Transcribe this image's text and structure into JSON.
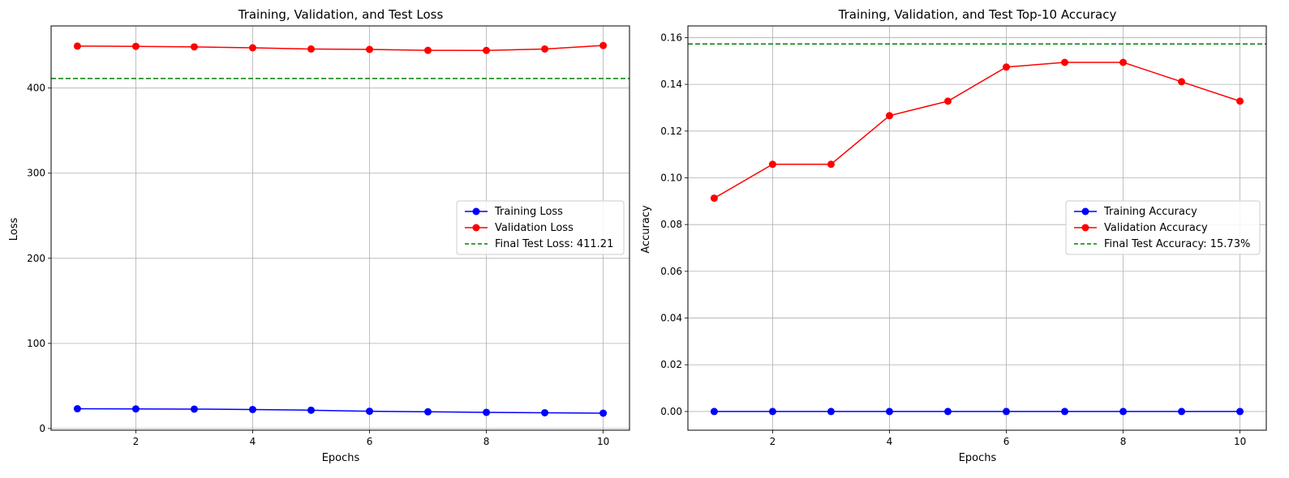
{
  "chart_data": [
    {
      "type": "line",
      "title": "Training, Validation, and Test Loss",
      "xlabel": "Epochs",
      "ylabel": "Loss",
      "xlim": [
        0.55,
        10.45
      ],
      "ylim": [
        -2,
        473
      ],
      "xticks": [
        2,
        4,
        6,
        8,
        10
      ],
      "yticks": [
        0,
        100,
        200,
        300,
        400
      ],
      "ytick_labels": [
        "0",
        "100",
        "200",
        "300",
        "400"
      ],
      "grid": true,
      "legend_position": "center-right",
      "x": [
        1,
        2,
        3,
        4,
        5,
        6,
        7,
        8,
        9,
        10
      ],
      "series": [
        {
          "name": "Training Loss",
          "color": "#0000ff",
          "marker": "circle",
          "values": [
            23.2,
            23.0,
            22.8,
            22.3,
            21.5,
            20.3,
            19.6,
            19.0,
            18.5,
            18.0
          ]
        },
        {
          "name": "Validation Loss",
          "color": "#ff0000",
          "marker": "circle",
          "values": [
            449.3,
            449.0,
            448.4,
            447.3,
            445.9,
            445.4,
            444.3,
            444.2,
            445.9,
            450.0
          ]
        }
      ],
      "reference_line": {
        "name": "Final Test Loss: 411.21",
        "value": 411.21,
        "color": "#008000"
      }
    },
    {
      "type": "line",
      "title": "Training, Validation, and Test Top-10 Accuracy",
      "xlabel": "Epochs",
      "ylabel": "Accuracy",
      "xlim": [
        0.55,
        10.45
      ],
      "ylim": [
        -0.008,
        0.165
      ],
      "xticks": [
        2,
        4,
        6,
        8,
        10
      ],
      "yticks": [
        0.0,
        0.02,
        0.04,
        0.06,
        0.08,
        0.1,
        0.12,
        0.14,
        0.16
      ],
      "ytick_labels": [
        "0.00",
        "0.02",
        "0.04",
        "0.06",
        "0.08",
        "0.10",
        "0.12",
        "0.14",
        "0.16"
      ],
      "grid": true,
      "legend_position": "center-right",
      "x": [
        1,
        2,
        3,
        4,
        5,
        6,
        7,
        8,
        9,
        10
      ],
      "series": [
        {
          "name": "Training Accuracy",
          "color": "#0000ff",
          "marker": "circle",
          "values": [
            0,
            0,
            0,
            0,
            0,
            0,
            0,
            0,
            0,
            0
          ]
        },
        {
          "name": "Validation Accuracy",
          "color": "#ff0000",
          "marker": "circle",
          "values": [
            0.0913,
            0.1058,
            0.1058,
            0.1266,
            0.1328,
            0.1474,
            0.1494,
            0.1494,
            0.1411,
            0.1328
          ]
        }
      ],
      "reference_line": {
        "name": "Final Test Accuracy: 15.73%",
        "value": 0.1573,
        "color": "#008000"
      }
    }
  ]
}
